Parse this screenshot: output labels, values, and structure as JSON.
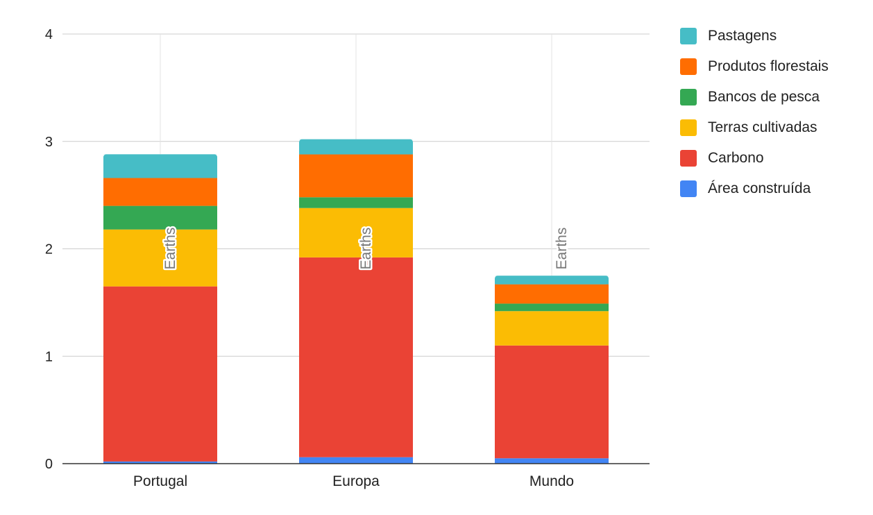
{
  "chart_data": {
    "type": "bar",
    "stacked": true,
    "categories": [
      "Portugal",
      "Europa",
      "Mundo"
    ],
    "series": [
      {
        "name": "Área construída",
        "color": "#4285F4",
        "values": [
          0.02,
          0.06,
          0.05
        ]
      },
      {
        "name": "Carbono",
        "color": "#EA4335",
        "values": [
          1.63,
          1.86,
          1.05
        ]
      },
      {
        "name": "Terras cultivadas",
        "color": "#FBBC04",
        "values": [
          0.53,
          0.46,
          0.32
        ]
      },
      {
        "name": "Bancos de pesca",
        "color": "#34A853",
        "values": [
          0.22,
          0.1,
          0.07
        ]
      },
      {
        "name": "Produtos florestais",
        "color": "#FF6D01",
        "values": [
          0.26,
          0.4,
          0.18
        ]
      },
      {
        "name": "Pastagens",
        "color": "#46BDC6",
        "values": [
          0.22,
          0.14,
          0.08
        ]
      }
    ],
    "totals_label": "Earths",
    "ylim": [
      0,
      4
    ],
    "yticks": [
      0,
      1,
      2,
      3,
      4
    ],
    "title": "",
    "xlabel": "",
    "ylabel": "",
    "legend_position": "right",
    "grid": true
  }
}
